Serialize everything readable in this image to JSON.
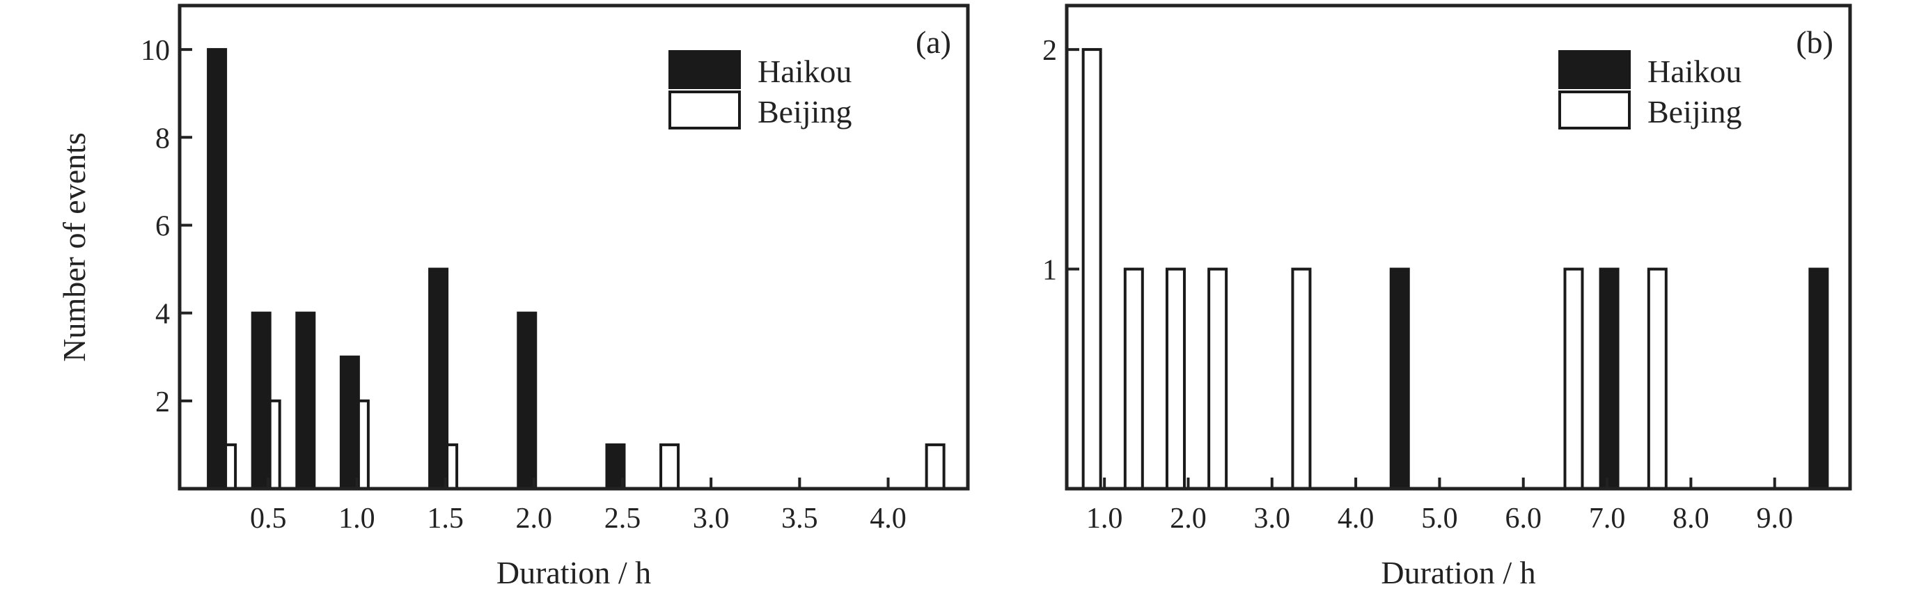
{
  "chart_data": [
    {
      "type": "bar",
      "panel_label": "(a)",
      "xlabel": "Duration / h",
      "ylabel": "Number of events",
      "xlim": [
        0,
        4.45
      ],
      "ylim": [
        0,
        11
      ],
      "yticks": [
        {
          "value": 2,
          "label": "2"
        },
        {
          "value": 4,
          "label": "4"
        },
        {
          "value": 6,
          "label": "6"
        },
        {
          "value": 8,
          "label": "8"
        },
        {
          "value": 10,
          "label": "10"
        }
      ],
      "xticks": [
        {
          "value": 0.5,
          "label": "0.5"
        },
        {
          "value": 1.0,
          "label": "1.0"
        },
        {
          "value": 1.5,
          "label": "1.5"
        },
        {
          "value": 2.0,
          "label": "2.0"
        },
        {
          "value": 2.5,
          "label": "2.5"
        },
        {
          "value": 3.0,
          "label": "3.0"
        },
        {
          "value": 3.5,
          "label": "3.5"
        },
        {
          "value": 4.0,
          "label": "4.0"
        }
      ],
      "legend_position": "top-right",
      "series": [
        {
          "name": "Haikou",
          "color": "#1a1a1a",
          "x": [
            0.25,
            0.5,
            0.75,
            1.0,
            1.5,
            2.0,
            2.5
          ],
          "values": [
            10,
            4,
            4,
            3,
            5,
            4,
            1
          ]
        },
        {
          "name": "Beijing",
          "color": "#ffffff",
          "x": [
            0.25,
            0.5,
            1.0,
            1.5,
            2.75,
            4.25
          ],
          "values": [
            1,
            2,
            2,
            1,
            1,
            1
          ]
        }
      ]
    },
    {
      "type": "bar",
      "panel_label": "(b)",
      "xlabel": "Duration / h",
      "ylabel": "",
      "xlim": [
        0.55,
        9.9
      ],
      "ylim": [
        0,
        2.2
      ],
      "yticks": [
        {
          "value": 1,
          "label": "1"
        },
        {
          "value": 2,
          "label": "2"
        }
      ],
      "xticks": [
        {
          "value": 1.0,
          "label": "1.0"
        },
        {
          "value": 2.0,
          "label": "2.0"
        },
        {
          "value": 3.0,
          "label": "3.0"
        },
        {
          "value": 4.0,
          "label": "4.0"
        },
        {
          "value": 5.0,
          "label": "5.0"
        },
        {
          "value": 6.0,
          "label": "6.0"
        },
        {
          "value": 7.0,
          "label": "7.0"
        },
        {
          "value": 8.0,
          "label": "8.0"
        },
        {
          "value": 9.0,
          "label": "9.0"
        }
      ],
      "legend_position": "top-right",
      "series": [
        {
          "name": "Haikou",
          "color": "#1a1a1a",
          "x": [
            4.5,
            7.0,
            9.5
          ],
          "values": [
            1,
            1,
            1
          ]
        },
        {
          "name": "Beijing",
          "color": "#ffffff",
          "x": [
            1.0,
            1.5,
            2.0,
            2.5,
            3.5,
            6.75,
            7.75
          ],
          "values": [
            2,
            1,
            1,
            1,
            1,
            1,
            1
          ]
        }
      ]
    }
  ]
}
